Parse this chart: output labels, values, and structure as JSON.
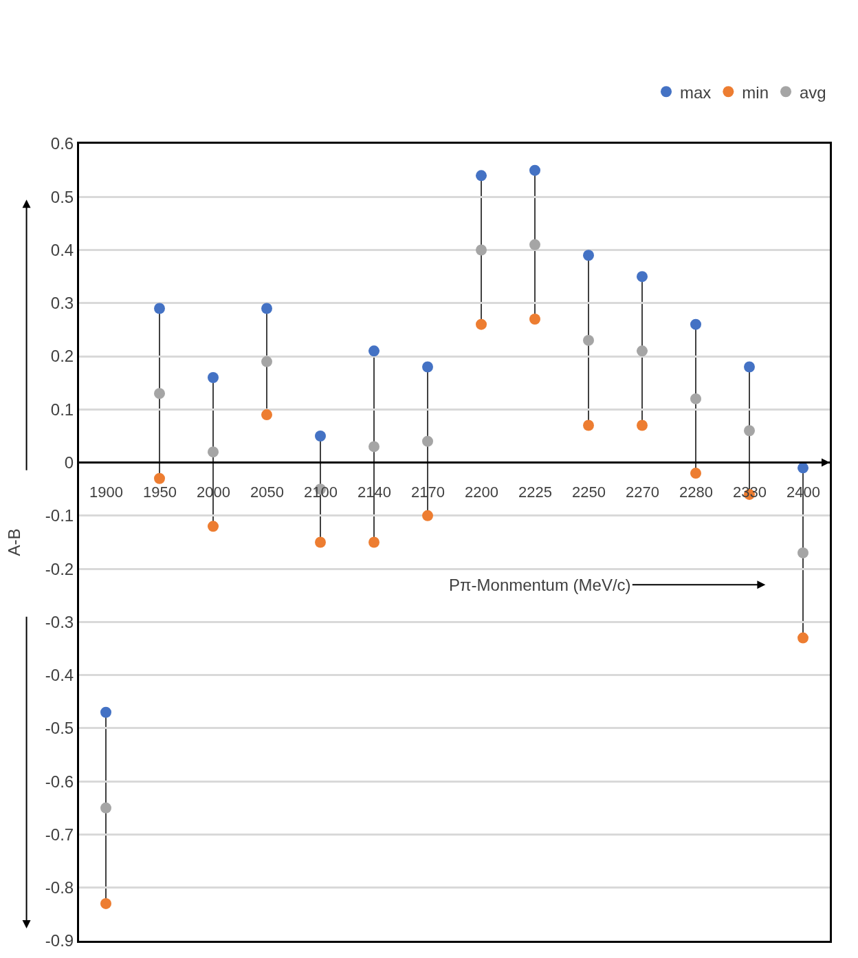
{
  "chart_data": {
    "type": "scatter",
    "ylabel": "A-B",
    "xlabel": "Pπ-Monmentum (MeV/c)",
    "categories": [
      "1900",
      "1950",
      "2000",
      "2050",
      "2100",
      "2140",
      "2170",
      "2200",
      "2225",
      "2250",
      "2270",
      "2280",
      "2330",
      "2400"
    ],
    "series": [
      {
        "name": "max",
        "color": "#4472c4",
        "values": [
          -0.47,
          0.29,
          0.16,
          0.29,
          0.05,
          0.21,
          0.18,
          0.54,
          0.55,
          0.39,
          0.35,
          0.26,
          0.18,
          -0.01
        ]
      },
      {
        "name": "min",
        "color": "#ed7d31",
        "values": [
          -0.83,
          -0.03,
          -0.12,
          0.09,
          -0.15,
          -0.15,
          -0.1,
          0.26,
          0.27,
          0.07,
          0.07,
          -0.02,
          -0.06,
          -0.33
        ]
      },
      {
        "name": "avg",
        "color": "#a5a5a5",
        "values": [
          -0.65,
          0.13,
          0.02,
          0.19,
          -0.05,
          0.03,
          0.04,
          0.4,
          0.41,
          0.23,
          0.21,
          0.12,
          0.06,
          -0.17
        ]
      }
    ],
    "ylim": [
      -0.9,
      0.6
    ],
    "yticks": [
      -0.9,
      -0.8,
      -0.7,
      -0.6,
      -0.5,
      -0.4,
      -0.3,
      -0.2,
      -0.1,
      0,
      0.1,
      0.2,
      0.3,
      0.4,
      0.5,
      0.6
    ],
    "grid": "y",
    "legend": "top right",
    "marker": "circle"
  }
}
